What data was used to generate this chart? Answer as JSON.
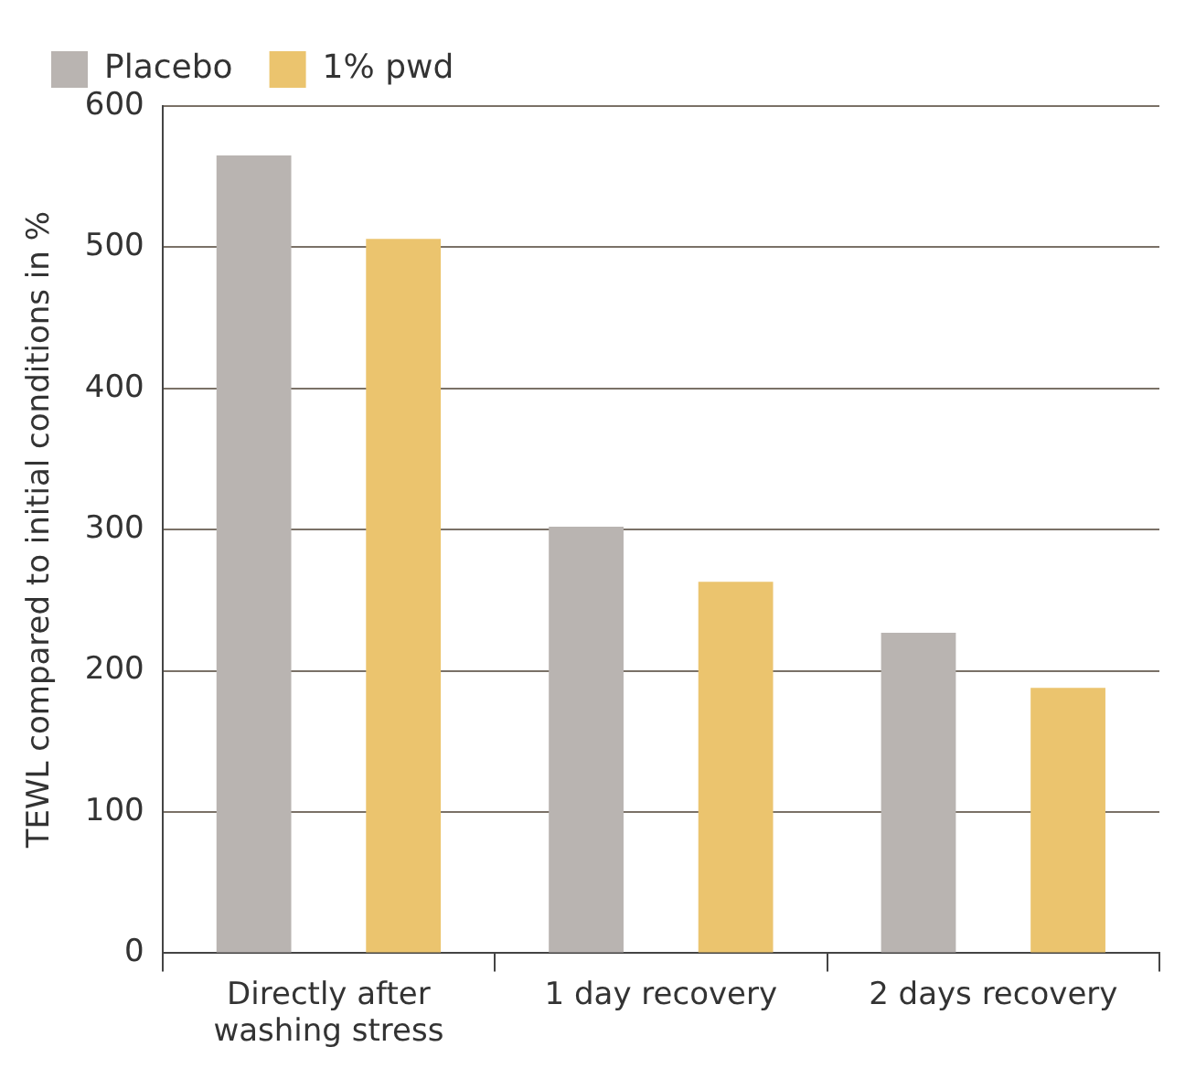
{
  "chart_data": {
    "type": "bar",
    "ylabel": "TEWL compared to initial conditions in %",
    "categories": [
      "Directly after washing stress",
      "1 day recovery",
      "2 days recovery"
    ],
    "series": [
      {
        "name": "Placebo",
        "color": "#b9b4b1",
        "values": [
          565,
          302,
          227
        ]
      },
      {
        "name": "1% pwd",
        "color": "#ebc46e",
        "values": [
          506,
          263,
          188
        ]
      }
    ],
    "ylim": [
      0,
      600
    ],
    "yticks": [
      0,
      100,
      200,
      300,
      400,
      500,
      600
    ],
    "grid": "y",
    "legend": "top left"
  }
}
